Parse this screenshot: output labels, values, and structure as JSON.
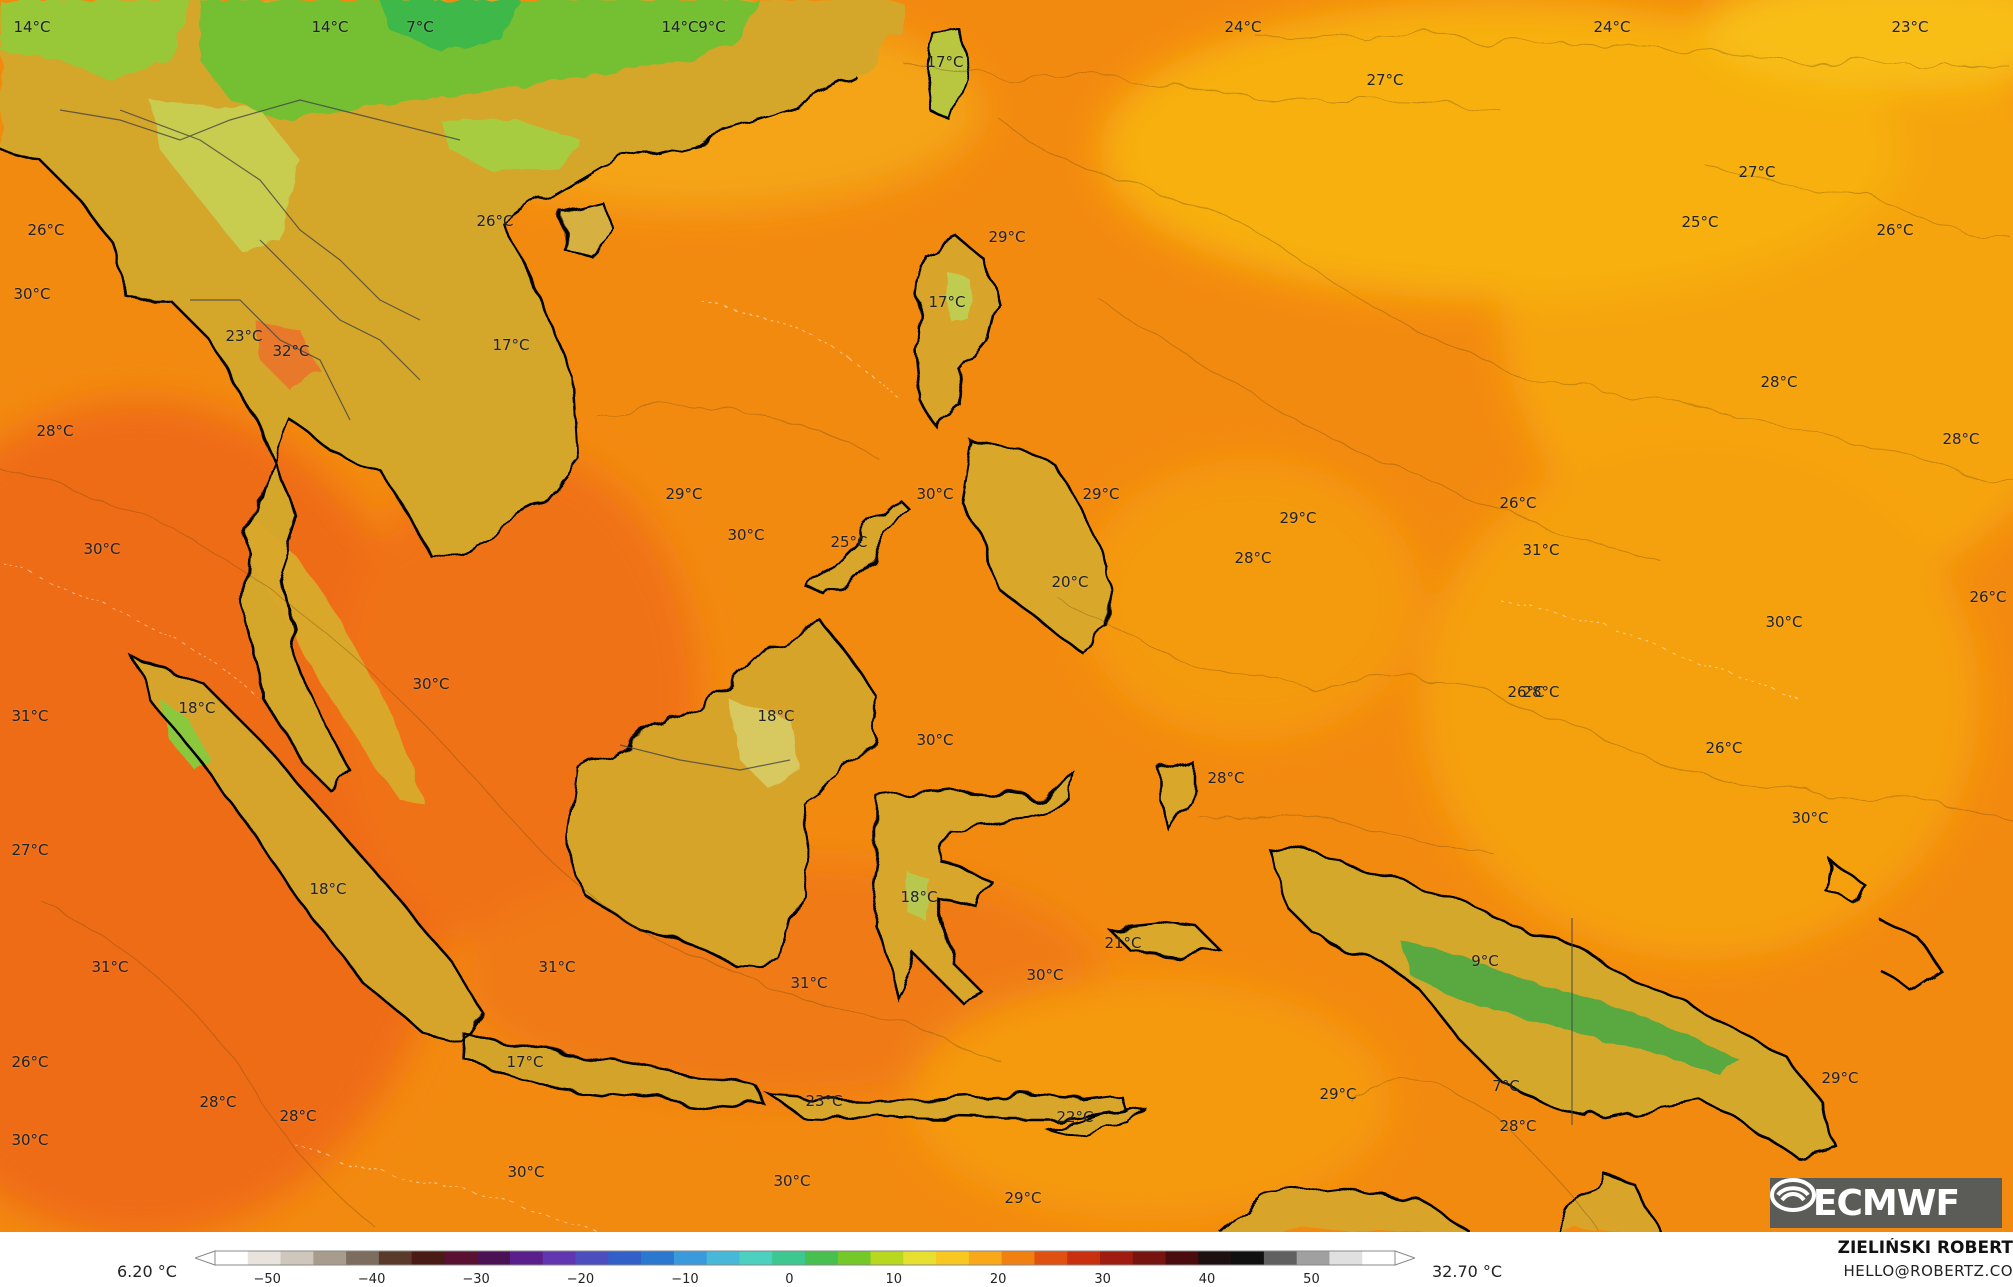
{
  "map": {
    "labels": [
      "14°C",
      "14°C",
      "7°C",
      "14°C",
      "9°C",
      "24°C",
      "24°C",
      "23°C",
      "17°C",
      "27°C",
      "27°C",
      "26°C",
      "26°C",
      "25°C",
      "26°C",
      "29°C",
      "30°C",
      "17°C",
      "23°C",
      "32°C",
      "17°C",
      "28°C",
      "28°C",
      "28°C",
      "29°C",
      "30°C",
      "29°C",
      "30°C",
      "25°C",
      "29°C",
      "26°C",
      "28°C",
      "31°C",
      "20°C",
      "26°C",
      "30°C",
      "30°C",
      "28°C",
      "18°C",
      "30°C",
      "26°C",
      "31°C",
      "18°C",
      "26°C",
      "30°C",
      "28°C",
      "30°C",
      "27°C",
      "18°C",
      "18°C",
      "21°C",
      "9°C",
      "31°C",
      "31°C",
      "31°C",
      "30°C",
      "26°C",
      "17°C",
      "23°C",
      "22°C",
      "29°C",
      "29°C",
      "7°C",
      "28°C",
      "30°C",
      "28°C",
      "28°C",
      "30°C",
      "30°C",
      "29°C"
    ]
  },
  "logo": {
    "text": "ECMWF",
    "icon": "ecmwf-logo-icon"
  },
  "legend": {
    "min_value": "6.20 °C",
    "max_value": "32.70 °C",
    "ticks": [
      "−50",
      "−40",
      "−30",
      "−20",
      "−10",
      "0",
      "10",
      "20",
      "30",
      "40",
      "50"
    ],
    "range": [
      -55,
      58
    ],
    "colors": [
      "#ffffff",
      "#e8e3dc",
      "#cfc7bc",
      "#a89c8d",
      "#7d6d5f",
      "#5a3a2a",
      "#4a1a14",
      "#5a1030",
      "#4c1054",
      "#5a1f8c",
      "#6236b0",
      "#4c4ec0",
      "#3060c8",
      "#2a78d0",
      "#3b9adc",
      "#48b8d8",
      "#4cd0c0",
      "#3cc890",
      "#48c050",
      "#74c828",
      "#b8d820",
      "#e8e030",
      "#f8c820",
      "#f8a818",
      "#f08010",
      "#e05010",
      "#c83010",
      "#a01c10",
      "#781410",
      "#4a0c0c",
      "#1c1010",
      "#101010",
      "#606060",
      "#a0a0a0",
      "#e0e0e0",
      "#ffffff"
    ]
  },
  "credit": {
    "author": "ZIELIŃSKI ROBERT",
    "email": "HELLO@ROBERTZ.CO"
  }
}
